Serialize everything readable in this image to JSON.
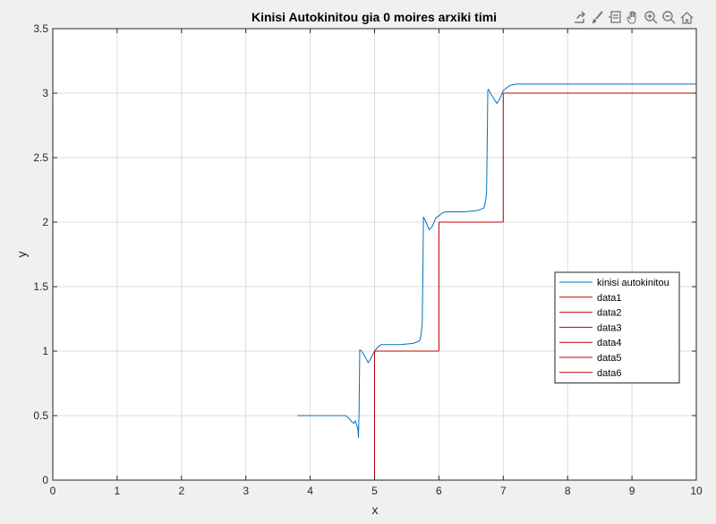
{
  "window": {
    "toolbar": [
      {
        "icon": "export-arrow-icon"
      },
      {
        "icon": "brush-icon"
      },
      {
        "icon": "datatip-icon"
      },
      {
        "icon": "pan-hand-icon"
      },
      {
        "icon": "zoom-in-icon"
      },
      {
        "icon": "zoom-out-icon"
      },
      {
        "icon": "home-icon"
      }
    ]
  },
  "colors": {
    "figure_background": "#f0f0f0",
    "axes_background": "#ffffff",
    "grid": "#dcdcdc",
    "axis": "#262626",
    "response_line": "#0072bd",
    "step_line": "#c00000"
  },
  "chart_data": {
    "type": "line",
    "title": "Kinisi Autokinitou gia 0 moires arxiki timi",
    "xlabel": "x",
    "ylabel": "y",
    "xlim": [
      0,
      10
    ],
    "ylim": [
      0,
      3.5
    ],
    "xticks": [
      0,
      1,
      2,
      3,
      4,
      5,
      6,
      7,
      8,
      9,
      10
    ],
    "yticks": [
      0,
      0.5,
      1,
      1.5,
      2,
      2.5,
      3,
      3.5
    ],
    "grid": true,
    "legend_position": "right",
    "series": [
      {
        "name": "kinisi autokinitou",
        "color": "#0072bd",
        "x": [
          3.8,
          4.55,
          4.6,
          4.65,
          4.68,
          4.7,
          4.72,
          4.74,
          4.75,
          4.76,
          4.77,
          4.8,
          4.85,
          4.9,
          4.95,
          5.0,
          5.05,
          5.1,
          5.2,
          5.4,
          5.6,
          5.7,
          5.72,
          5.74,
          5.75,
          5.76,
          5.77,
          5.8,
          5.85,
          5.9,
          5.95,
          6.0,
          6.05,
          6.1,
          6.2,
          6.4,
          6.6,
          6.7,
          6.72,
          6.74,
          6.75,
          6.76,
          6.77,
          6.8,
          6.85,
          6.9,
          6.95,
          7.0,
          7.05,
          7.1,
          7.2,
          8.0,
          9.0,
          10.0
        ],
        "y": [
          0.5,
          0.5,
          0.48,
          0.45,
          0.44,
          0.46,
          0.43,
          0.4,
          0.33,
          0.55,
          1.01,
          1.0,
          0.96,
          0.91,
          0.95,
          1.0,
          1.03,
          1.05,
          1.05,
          1.05,
          1.06,
          1.08,
          1.12,
          1.2,
          1.55,
          2.04,
          2.03,
          2.0,
          1.94,
          1.97,
          2.03,
          2.05,
          2.07,
          2.08,
          2.08,
          2.08,
          2.09,
          2.11,
          2.15,
          2.22,
          2.6,
          3.02,
          3.03,
          3.0,
          2.96,
          2.92,
          2.96,
          3.02,
          3.04,
          3.06,
          3.07,
          3.07,
          3.07,
          3.07
        ]
      },
      {
        "name": "data1",
        "color": "#c00000",
        "x": [
          5,
          5
        ],
        "y": [
          0,
          1
        ]
      },
      {
        "name": "data2",
        "color": "#c00000",
        "x": [
          5,
          6
        ],
        "y": [
          1,
          1
        ]
      },
      {
        "name": "data3",
        "color": "#c00000",
        "x": [
          6,
          6
        ],
        "y": [
          1,
          2
        ]
      },
      {
        "name": "data4",
        "color": "#c00000",
        "x": [
          6,
          7
        ],
        "y": [
          2,
          2
        ]
      },
      {
        "name": "data5",
        "color": "#c00000",
        "x": [
          7,
          7
        ],
        "y": [
          2,
          3
        ]
      },
      {
        "name": "data6",
        "color": "#c00000",
        "x": [
          7,
          10
        ],
        "y": [
          3,
          3
        ]
      }
    ]
  }
}
